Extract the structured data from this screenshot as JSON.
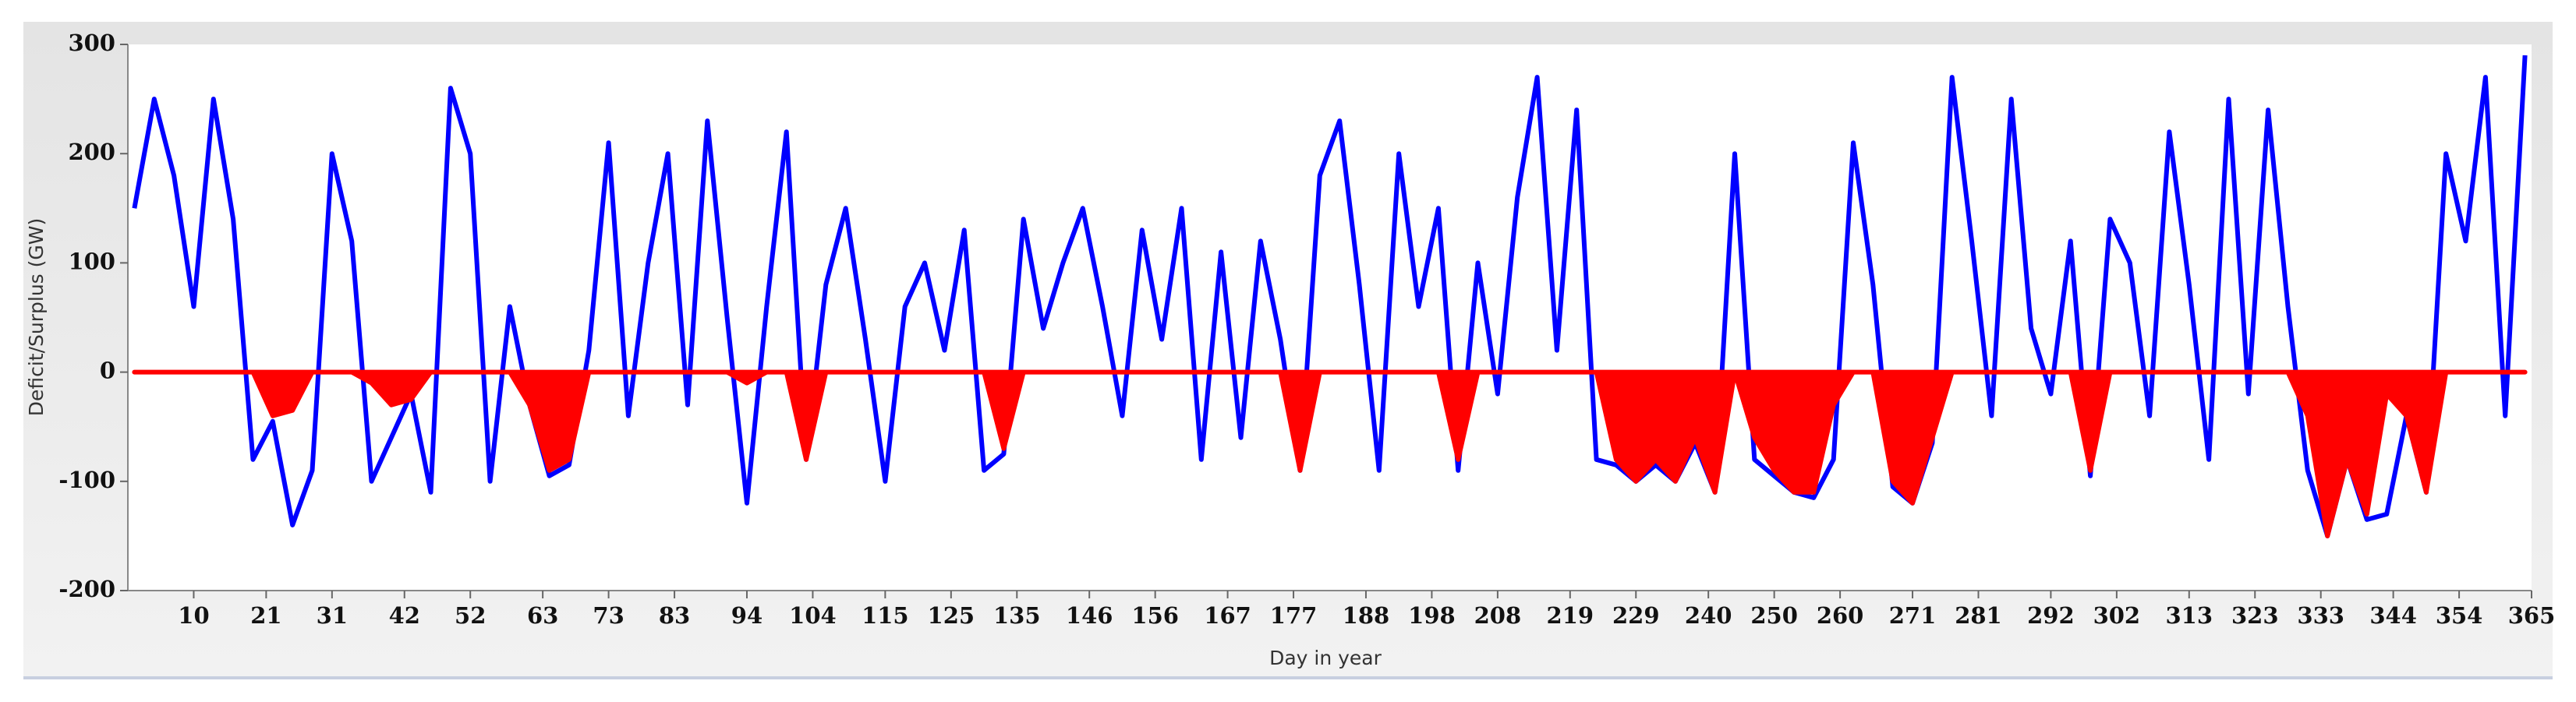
{
  "chart_data": {
    "type": "line",
    "xlabel": "Day in year",
    "ylabel": "Deficit/Surplus (GW)",
    "xlim": [
      0,
      365
    ],
    "xticks": [
      10,
      21,
      31,
      42,
      52,
      63,
      73,
      83,
      94,
      104,
      115,
      125,
      135,
      146,
      156,
      167,
      177,
      188,
      198,
      208,
      219,
      229,
      240,
      250,
      260,
      271,
      281,
      292,
      302,
      313,
      323,
      333,
      344,
      354,
      365
    ],
    "ylim": [
      -200,
      300
    ],
    "yticks": [
      300,
      200,
      100,
      0,
      -100,
      -200
    ],
    "x": [
      1,
      4,
      7,
      10,
      13,
      16,
      19,
      22,
      25,
      28,
      31,
      34,
      37,
      40,
      43,
      46,
      49,
      52,
      55,
      58,
      61,
      64,
      67,
      70,
      73,
      76,
      79,
      82,
      85,
      88,
      91,
      94,
      97,
      100,
      103,
      106,
      109,
      112,
      115,
      118,
      121,
      124,
      127,
      130,
      133,
      136,
      139,
      142,
      145,
      148,
      151,
      154,
      157,
      160,
      163,
      166,
      169,
      172,
      175,
      178,
      181,
      184,
      187,
      190,
      193,
      196,
      199,
      202,
      205,
      208,
      211,
      214,
      217,
      220,
      223,
      226,
      229,
      232,
      235,
      238,
      241,
      244,
      247,
      250,
      253,
      256,
      259,
      262,
      265,
      268,
      271,
      274,
      277,
      280,
      283,
      286,
      289,
      292,
      295,
      298,
      301,
      304,
      307,
      310,
      313,
      316,
      319,
      322,
      325,
      328,
      331,
      334,
      337,
      340,
      343,
      346,
      349,
      352,
      355,
      358,
      361,
      364
    ],
    "series": [
      {
        "color": "#0000ff",
        "fill": false,
        "values": [
          150,
          250,
          180,
          60,
          250,
          140,
          -80,
          -45,
          -140,
          -90,
          200,
          120,
          -100,
          -60,
          -20,
          -110,
          260,
          200,
          -100,
          60,
          -30,
          -95,
          -85,
          20,
          210,
          -40,
          100,
          200,
          -30,
          230,
          50,
          -120,
          60,
          220,
          -80,
          80,
          150,
          30,
          -100,
          60,
          100,
          20,
          130,
          -90,
          -75,
          140,
          40,
          100,
          150,
          60,
          -40,
          130,
          30,
          150,
          -80,
          110,
          -60,
          120,
          30,
          -90,
          180,
          230,
          80,
          -90,
          200,
          60,
          150,
          -90,
          100,
          -20,
          160,
          270,
          20,
          240,
          -80,
          -85,
          -100,
          -85,
          -100,
          -65,
          -110,
          200,
          -80,
          -95,
          -110,
          -115,
          -80,
          210,
          80,
          -105,
          -120,
          -65,
          270,
          120,
          -40,
          250,
          40,
          -20,
          120,
          -95,
          140,
          100,
          -40,
          220,
          80,
          -80,
          250,
          -20,
          240,
          60,
          -90,
          -150,
          -80,
          -135,
          -130,
          -40,
          -110,
          200,
          120,
          270,
          -40,
          290
        ]
      },
      {
        "color": "#ff0000",
        "fill": true,
        "values": [
          0,
          0,
          0,
          0,
          0,
          0,
          0,
          -40,
          -35,
          0,
          0,
          0,
          -10,
          -30,
          -25,
          0,
          0,
          0,
          0,
          0,
          -30,
          -90,
          -80,
          0,
          0,
          0,
          0,
          0,
          0,
          0,
          0,
          -10,
          0,
          0,
          -80,
          0,
          0,
          0,
          0,
          0,
          0,
          0,
          0,
          0,
          -70,
          0,
          0,
          0,
          0,
          0,
          0,
          0,
          0,
          0,
          0,
          0,
          0,
          0,
          0,
          -90,
          0,
          0,
          0,
          0,
          0,
          0,
          0,
          -80,
          0,
          0,
          0,
          0,
          0,
          0,
          0,
          -80,
          -100,
          -80,
          -100,
          -60,
          -110,
          0,
          -60,
          -90,
          -110,
          -110,
          -30,
          0,
          0,
          -100,
          -120,
          -60,
          0,
          0,
          0,
          0,
          0,
          0,
          0,
          -90,
          0,
          0,
          0,
          0,
          0,
          0,
          0,
          0,
          0,
          0,
          -40,
          -150,
          -80,
          -130,
          -20,
          -40,
          -110,
          0,
          0,
          0,
          0,
          0
        ]
      }
    ]
  }
}
